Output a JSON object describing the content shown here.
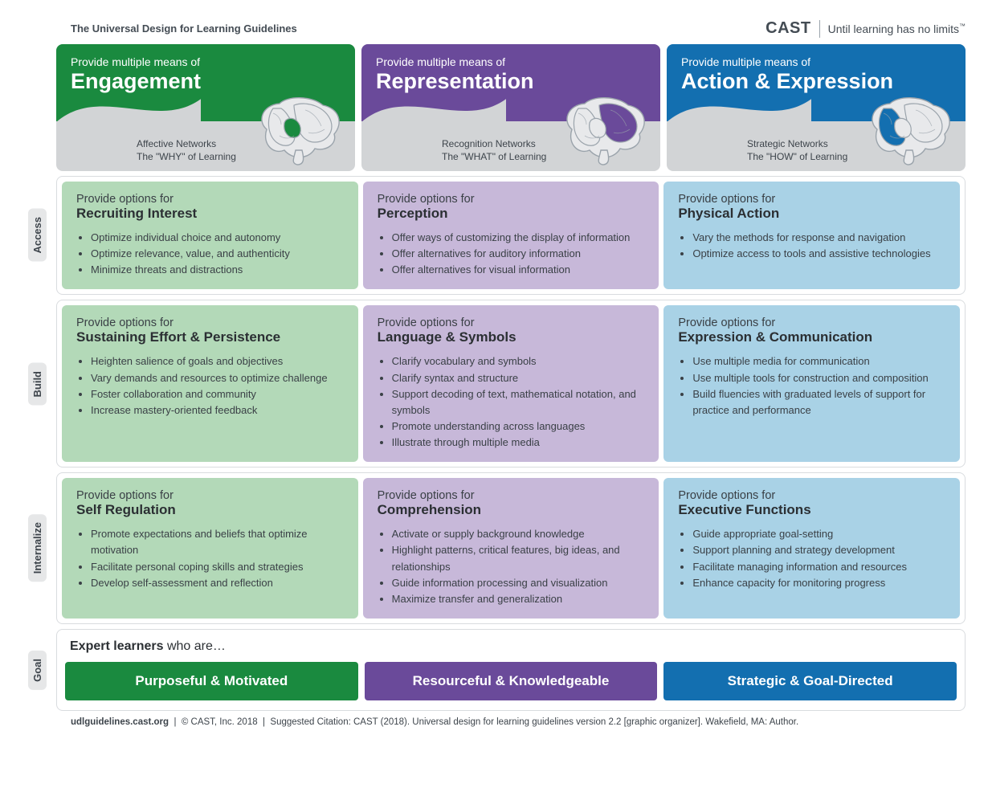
{
  "meta": {
    "page_title": "The Universal Design for Learning Guidelines",
    "brand_name": "CAST",
    "brand_tagline": "Until learning has no limits",
    "footer_site": "udlguidelines.cast.org",
    "footer_copyright": "© CAST, Inc. 2018",
    "footer_citation": "Suggested Citation: CAST (2018). Universal design for learning guidelines version 2.2 [graphic organizer]. Wakefield, MA: Author."
  },
  "colors": {
    "green_dark": "#1a8a3f",
    "green_light": "#b3d9b8",
    "purple_dark": "#6a4a9a",
    "purple_light": "#c7b8d9",
    "blue_dark": "#136fb0",
    "blue_light": "#a9d2e6",
    "header_gray": "#d2d4d6",
    "text_dark": "#2b2f33",
    "text_mid": "#3d444b",
    "border": "#d9dcdf",
    "side_bg": "#e6e7e8"
  },
  "typography": {
    "header_main_pt": 27,
    "cell_title_pt": 17,
    "body_pt": 13,
    "pill_pt": 17
  },
  "columns": [
    {
      "id": "engagement",
      "prefix": "Provide multiple means of",
      "title": "Engagement",
      "network_line1": "Affective Networks",
      "network_line2": "The \"WHY\" of Learning",
      "color_dark": "#1a8a3f",
      "color_light": "#b3d9b8",
      "brain_highlight": "center"
    },
    {
      "id": "representation",
      "prefix": "Provide multiple means of",
      "title": "Representation",
      "network_line1": "Recognition Networks",
      "network_line2": "The \"WHAT\" of Learning",
      "color_dark": "#6a4a9a",
      "color_light": "#c7b8d9",
      "brain_highlight": "back"
    },
    {
      "id": "action",
      "prefix": "Provide multiple means of",
      "title": "Action & Expression",
      "network_line1": "Strategic Networks",
      "network_line2": "The \"HOW\" of Learning",
      "color_dark": "#136fb0",
      "color_light": "#a9d2e6",
      "brain_highlight": "front"
    }
  ],
  "rows": [
    {
      "id": "access",
      "label": "Access",
      "cells": [
        {
          "lead": "Provide options for",
          "title": "Recruiting Interest",
          "bullets": [
            "Optimize individual choice and autonomy",
            "Optimize relevance, value, and authenticity",
            "Minimize threats and distractions"
          ]
        },
        {
          "lead": "Provide options for",
          "title": "Perception",
          "bullets": [
            "Offer ways of customizing the display of information",
            "Offer alternatives for auditory information",
            "Offer alternatives for visual information"
          ]
        },
        {
          "lead": "Provide options for",
          "title": "Physical Action",
          "bullets": [
            "Vary the methods for response and navigation",
            "Optimize access to tools and assistive technologies"
          ]
        }
      ]
    },
    {
      "id": "build",
      "label": "Build",
      "cells": [
        {
          "lead": "Provide options for",
          "title": "Sustaining Effort & Persistence",
          "bullets": [
            "Heighten salience of goals and objectives",
            "Vary demands and resources to optimize challenge",
            "Foster collaboration and community",
            "Increase mastery-oriented feedback"
          ]
        },
        {
          "lead": "Provide options for",
          "title": "Language & Symbols",
          "bullets": [
            "Clarify vocabulary and symbols",
            "Clarify syntax and structure",
            "Support decoding of text, mathematical notation, and symbols",
            "Promote understanding across languages",
            "Illustrate through multiple media"
          ]
        },
        {
          "lead": "Provide options for",
          "title": "Expression & Communication",
          "bullets": [
            "Use multiple media for communication",
            "Use multiple tools for construction and composition",
            "Build fluencies with graduated levels of support for practice and performance"
          ]
        }
      ]
    },
    {
      "id": "internalize",
      "label": "Internalize",
      "cells": [
        {
          "lead": "Provide options for",
          "title": "Self Regulation",
          "bullets": [
            "Promote expectations and beliefs that optimize motivation",
            "Facilitate personal coping skills and strategies",
            "Develop self-assessment and reflection"
          ]
        },
        {
          "lead": "Provide options for",
          "title": "Comprehension",
          "bullets": [
            "Activate or supply background knowledge",
            "Highlight patterns, critical features, big ideas, and relationships",
            "Guide information processing and visualization",
            "Maximize transfer and generalization"
          ]
        },
        {
          "lead": "Provide options for",
          "title": "Executive Functions",
          "bullets": [
            "Guide appropriate goal-setting",
            "Support planning and strategy development",
            "Facilitate managing information and resources",
            "Enhance capacity for monitoring progress"
          ]
        }
      ]
    }
  ],
  "goal": {
    "label": "Goal",
    "lead_bold": "Expert learners",
    "lead_rest": " who are…",
    "pills": [
      {
        "text": "Purposeful & Motivated",
        "color": "#1a8a3f"
      },
      {
        "text": "Resourceful & Knowledgeable",
        "color": "#6a4a9a"
      },
      {
        "text": "Strategic & Goal-Directed",
        "color": "#136fb0"
      }
    ]
  }
}
